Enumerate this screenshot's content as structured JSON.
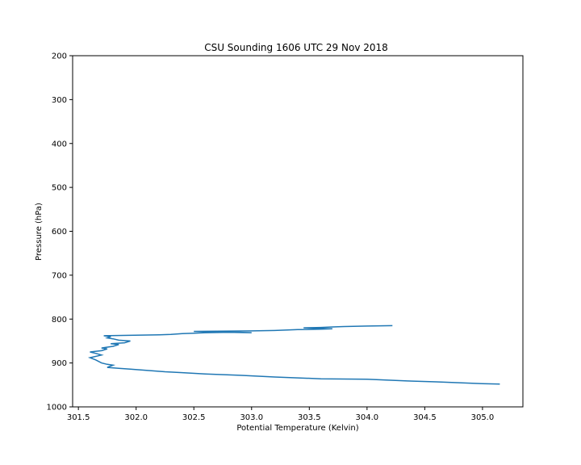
{
  "chart_data": {
    "type": "line",
    "title": "CSU Sounding 1606 UTC 29 Nov 2018",
    "xlabel": "Potential Temperature (Kelvin)",
    "ylabel": "Pressure (hPa)",
    "xlim": [
      301.45,
      305.35
    ],
    "ylim": [
      1000,
      200
    ],
    "y_inverted": true,
    "grid": false,
    "legend": "none",
    "x_ticks": [
      301.5,
      302.0,
      302.5,
      303.0,
      303.5,
      304.0,
      304.5,
      305.0
    ],
    "x_tick_labels": [
      "301.5",
      "302.0",
      "302.5",
      "303.0",
      "303.5",
      "304.0",
      "304.5",
      "305.0"
    ],
    "y_ticks": [
      200,
      300,
      400,
      500,
      600,
      700,
      800,
      900,
      1000
    ],
    "y_tick_labels": [
      "200",
      "300",
      "400",
      "500",
      "600",
      "700",
      "800",
      "900",
      "1000"
    ],
    "series": [
      {
        "color": "#1f77b4",
        "x": [
          305.15,
          305.0,
          304.8,
          304.6,
          304.35,
          304.0,
          303.6,
          303.2,
          302.9,
          302.6,
          302.4,
          302.25,
          302.1,
          301.95,
          301.85,
          301.75,
          301.8,
          301.75,
          301.7,
          301.65,
          301.6,
          301.7,
          301.65,
          301.6,
          301.7,
          301.75,
          301.7,
          301.8,
          301.85,
          301.78,
          301.9,
          301.95,
          301.85,
          301.8,
          301.75,
          301.78,
          301.72,
          302.2,
          302.3,
          302.4,
          302.5,
          302.6,
          302.8,
          303.0,
          302.9,
          302.7,
          302.5,
          303.0,
          303.2,
          303.4,
          303.6,
          303.7,
          303.55,
          303.45,
          303.6,
          303.7,
          303.8,
          304.0,
          304.22
        ],
        "y": [
          948,
          947,
          945,
          943,
          941,
          937,
          936,
          932,
          928,
          925,
          922,
          920,
          917,
          914,
          912,
          910,
          905,
          903,
          900,
          893,
          888,
          882,
          878,
          875,
          872,
          868,
          866,
          862,
          858,
          856,
          854,
          850,
          848,
          845,
          843,
          840,
          838,
          836,
          835,
          833,
          832,
          831,
          830,
          831,
          830,
          829,
          828,
          827,
          826,
          824,
          823,
          822,
          821,
          820,
          819,
          818,
          817,
          816,
          815
        ]
      }
    ]
  }
}
